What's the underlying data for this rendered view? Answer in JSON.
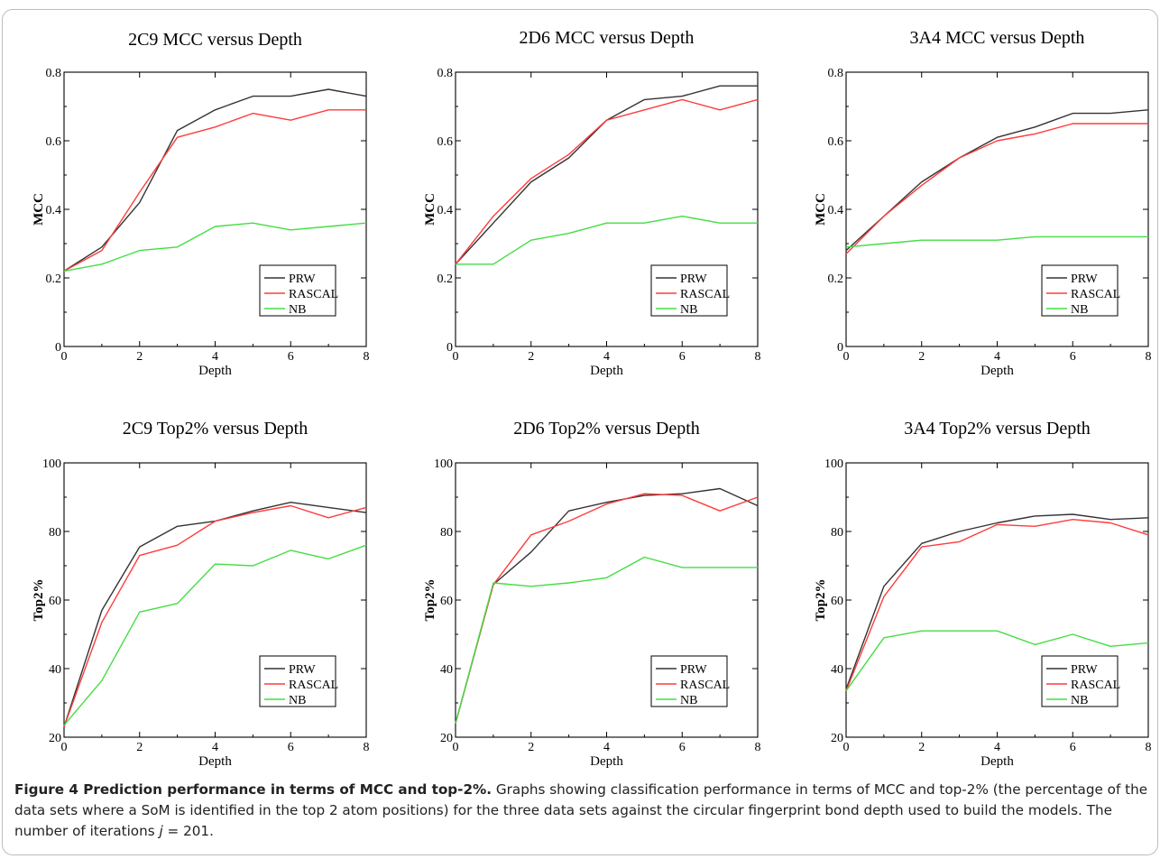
{
  "chart_data": [
    {
      "type": "line",
      "title": "2C9 MCC versus Depth",
      "xlabel": "Depth",
      "ylabel": "MCC",
      "xlim": [
        0,
        8
      ],
      "ylim": [
        0,
        0.8
      ],
      "x_ticks": [
        0,
        2,
        4,
        6,
        8
      ],
      "x_tick_labels": [
        "0",
        "2",
        "4",
        "6",
        "8"
      ],
      "y_ticks": [
        0,
        0.2,
        0.4,
        0.6,
        0.8
      ],
      "y_tick_labels": [
        "0",
        "0.2",
        "0.4",
        "0.6",
        "0.8"
      ],
      "legend_position": "bottom-right",
      "x": [
        0,
        1,
        2,
        3,
        4,
        5,
        6,
        7,
        8
      ],
      "series": [
        {
          "name": "PRW",
          "color": "#333333",
          "values": [
            0.22,
            0.29,
            0.42,
            0.63,
            0.69,
            0.73,
            0.73,
            0.75,
            0.73
          ]
        },
        {
          "name": "RASCAL",
          "color": "#ff3b3b",
          "values": [
            0.22,
            0.28,
            0.45,
            0.61,
            0.64,
            0.68,
            0.66,
            0.69,
            0.69
          ]
        },
        {
          "name": "NB",
          "color": "#44dd44",
          "values": [
            0.22,
            0.24,
            0.28,
            0.29,
            0.35,
            0.36,
            0.34,
            0.35,
            0.36
          ]
        }
      ]
    },
    {
      "type": "line",
      "title": "2D6 MCC versus Depth",
      "xlabel": "Depth",
      "ylabel": "MCC",
      "xlim": [
        0,
        8
      ],
      "ylim": [
        0,
        0.8
      ],
      "x_ticks": [
        0,
        2,
        4,
        6,
        8
      ],
      "x_tick_labels": [
        "0",
        "2",
        "4",
        "6",
        "8"
      ],
      "y_ticks": [
        0,
        0.2,
        0.4,
        0.6,
        0.8
      ],
      "y_tick_labels": [
        "0",
        "0.2",
        "0.4",
        "0.6",
        "0.8"
      ],
      "legend_position": "bottom-right",
      "x": [
        0,
        1,
        2,
        3,
        4,
        5,
        6,
        7,
        8
      ],
      "series": [
        {
          "name": "PRW",
          "color": "#333333",
          "values": [
            0.24,
            0.36,
            0.48,
            0.55,
            0.66,
            0.72,
            0.73,
            0.76,
            0.76
          ]
        },
        {
          "name": "RASCAL",
          "color": "#ff3b3b",
          "values": [
            0.24,
            0.38,
            0.49,
            0.56,
            0.66,
            0.69,
            0.72,
            0.69,
            0.72
          ]
        },
        {
          "name": "NB",
          "color": "#44dd44",
          "values": [
            0.24,
            0.24,
            0.31,
            0.33,
            0.36,
            0.36,
            0.38,
            0.36,
            0.36
          ]
        }
      ]
    },
    {
      "type": "line",
      "title": "3A4 MCC versus Depth",
      "xlabel": "Depth",
      "ylabel": "MCC",
      "xlim": [
        0,
        8
      ],
      "ylim": [
        0,
        0.8
      ],
      "x_ticks": [
        0,
        2,
        4,
        6,
        8
      ],
      "x_tick_labels": [
        "0",
        "2",
        "4",
        "6",
        "8"
      ],
      "y_ticks": [
        0,
        0.2,
        0.4,
        0.6,
        0.8
      ],
      "y_tick_labels": [
        "0",
        "0.2",
        "0.4",
        "0.6",
        "0.8"
      ],
      "legend_position": "bottom-right",
      "x": [
        0,
        1,
        2,
        3,
        4,
        5,
        6,
        7,
        8
      ],
      "series": [
        {
          "name": "PRW",
          "color": "#333333",
          "values": [
            0.28,
            0.38,
            0.48,
            0.55,
            0.61,
            0.64,
            0.68,
            0.68,
            0.69
          ]
        },
        {
          "name": "RASCAL",
          "color": "#ff3b3b",
          "values": [
            0.27,
            0.38,
            0.47,
            0.55,
            0.6,
            0.62,
            0.65,
            0.65,
            0.65
          ]
        },
        {
          "name": "NB",
          "color": "#44dd44",
          "values": [
            0.29,
            0.3,
            0.31,
            0.31,
            0.31,
            0.32,
            0.32,
            0.32,
            0.32
          ]
        }
      ]
    },
    {
      "type": "line",
      "title": "2C9 Top2% versus Depth",
      "xlabel": "Depth",
      "ylabel": "Top2%",
      "xlim": [
        0,
        8
      ],
      "ylim": [
        20,
        100
      ],
      "x_ticks": [
        0,
        2,
        4,
        6,
        8
      ],
      "x_tick_labels": [
        "0",
        "2",
        "4",
        "6",
        "8"
      ],
      "y_ticks": [
        20,
        40,
        60,
        80,
        100
      ],
      "y_tick_labels": [
        "20",
        "40",
        "60",
        "80",
        "100"
      ],
      "legend_position": "bottom-right",
      "x": [
        0,
        1,
        2,
        3,
        4,
        5,
        6,
        7,
        8
      ],
      "series": [
        {
          "name": "PRW",
          "color": "#333333",
          "values": [
            23,
            57,
            75.5,
            81.5,
            83,
            86,
            88.5,
            87,
            85.5
          ]
        },
        {
          "name": "RASCAL",
          "color": "#ff3b3b",
          "values": [
            23,
            53.5,
            73,
            76,
            83,
            85.5,
            87.5,
            84,
            87
          ]
        },
        {
          "name": "NB",
          "color": "#44dd44",
          "values": [
            23.5,
            36.5,
            56.5,
            59,
            70.5,
            70,
            74.5,
            72,
            76
          ]
        }
      ]
    },
    {
      "type": "line",
      "title": "2D6 Top2% versus Depth",
      "xlabel": "Depth",
      "ylabel": "Top2%",
      "xlim": [
        0,
        8
      ],
      "ylim": [
        20,
        100
      ],
      "x_ticks": [
        0,
        2,
        4,
        6,
        8
      ],
      "x_tick_labels": [
        "0",
        "2",
        "4",
        "6",
        "8"
      ],
      "y_ticks": [
        20,
        40,
        60,
        80,
        100
      ],
      "y_tick_labels": [
        "20",
        "40",
        "60",
        "80",
        "100"
      ],
      "legend_position": "bottom-right",
      "x": [
        0,
        1,
        2,
        3,
        4,
        5,
        6,
        7,
        8
      ],
      "series": [
        {
          "name": "PRW",
          "color": "#333333",
          "values": [
            24,
            64.5,
            74,
            86,
            88.5,
            90.5,
            91,
            92.5,
            87.5
          ]
        },
        {
          "name": "RASCAL",
          "color": "#ff3b3b",
          "values": [
            24,
            64.5,
            79,
            83,
            88,
            91,
            90.5,
            86,
            90
          ]
        },
        {
          "name": "NB",
          "color": "#44dd44",
          "values": [
            24,
            65,
            64,
            65,
            66.5,
            72.5,
            69.5,
            69.5,
            69.5
          ]
        }
      ]
    },
    {
      "type": "line",
      "title": "3A4 Top2% versus Depth",
      "xlabel": "Depth",
      "ylabel": "Top2%",
      "xlim": [
        0,
        8
      ],
      "ylim": [
        20,
        100
      ],
      "x_ticks": [
        0,
        2,
        4,
        6,
        8
      ],
      "x_tick_labels": [
        "0",
        "2",
        "4",
        "6",
        "8"
      ],
      "y_ticks": [
        20,
        40,
        60,
        80,
        100
      ],
      "y_tick_labels": [
        "20",
        "40",
        "60",
        "80",
        "100"
      ],
      "legend_position": "bottom-right",
      "x": [
        0,
        1,
        2,
        3,
        4,
        5,
        6,
        7,
        8
      ],
      "series": [
        {
          "name": "PRW",
          "color": "#333333",
          "values": [
            34,
            64,
            76.5,
            80,
            82.5,
            84.5,
            85,
            83.5,
            84
          ]
        },
        {
          "name": "RASCAL",
          "color": "#ff3b3b",
          "values": [
            33.5,
            61,
            75.5,
            77,
            82,
            81.5,
            83.5,
            82.5,
            79
          ]
        },
        {
          "name": "NB",
          "color": "#44dd44",
          "values": [
            33.5,
            49,
            51,
            51,
            51,
            47,
            50,
            46.5,
            47.5
          ]
        }
      ]
    }
  ],
  "caption": {
    "bold": "Figure 4 Prediction performance in terms of MCC and top-2%.",
    "text": " Graphs showing classification performance in terms of MCC and top-2% (the percentage of the data sets where a SoM is identified in the top 2 atom positions) for the three data sets against the circular fingerprint bond depth used to build the models. The number of iterations ",
    "var": "j",
    "tail": " = 201."
  }
}
